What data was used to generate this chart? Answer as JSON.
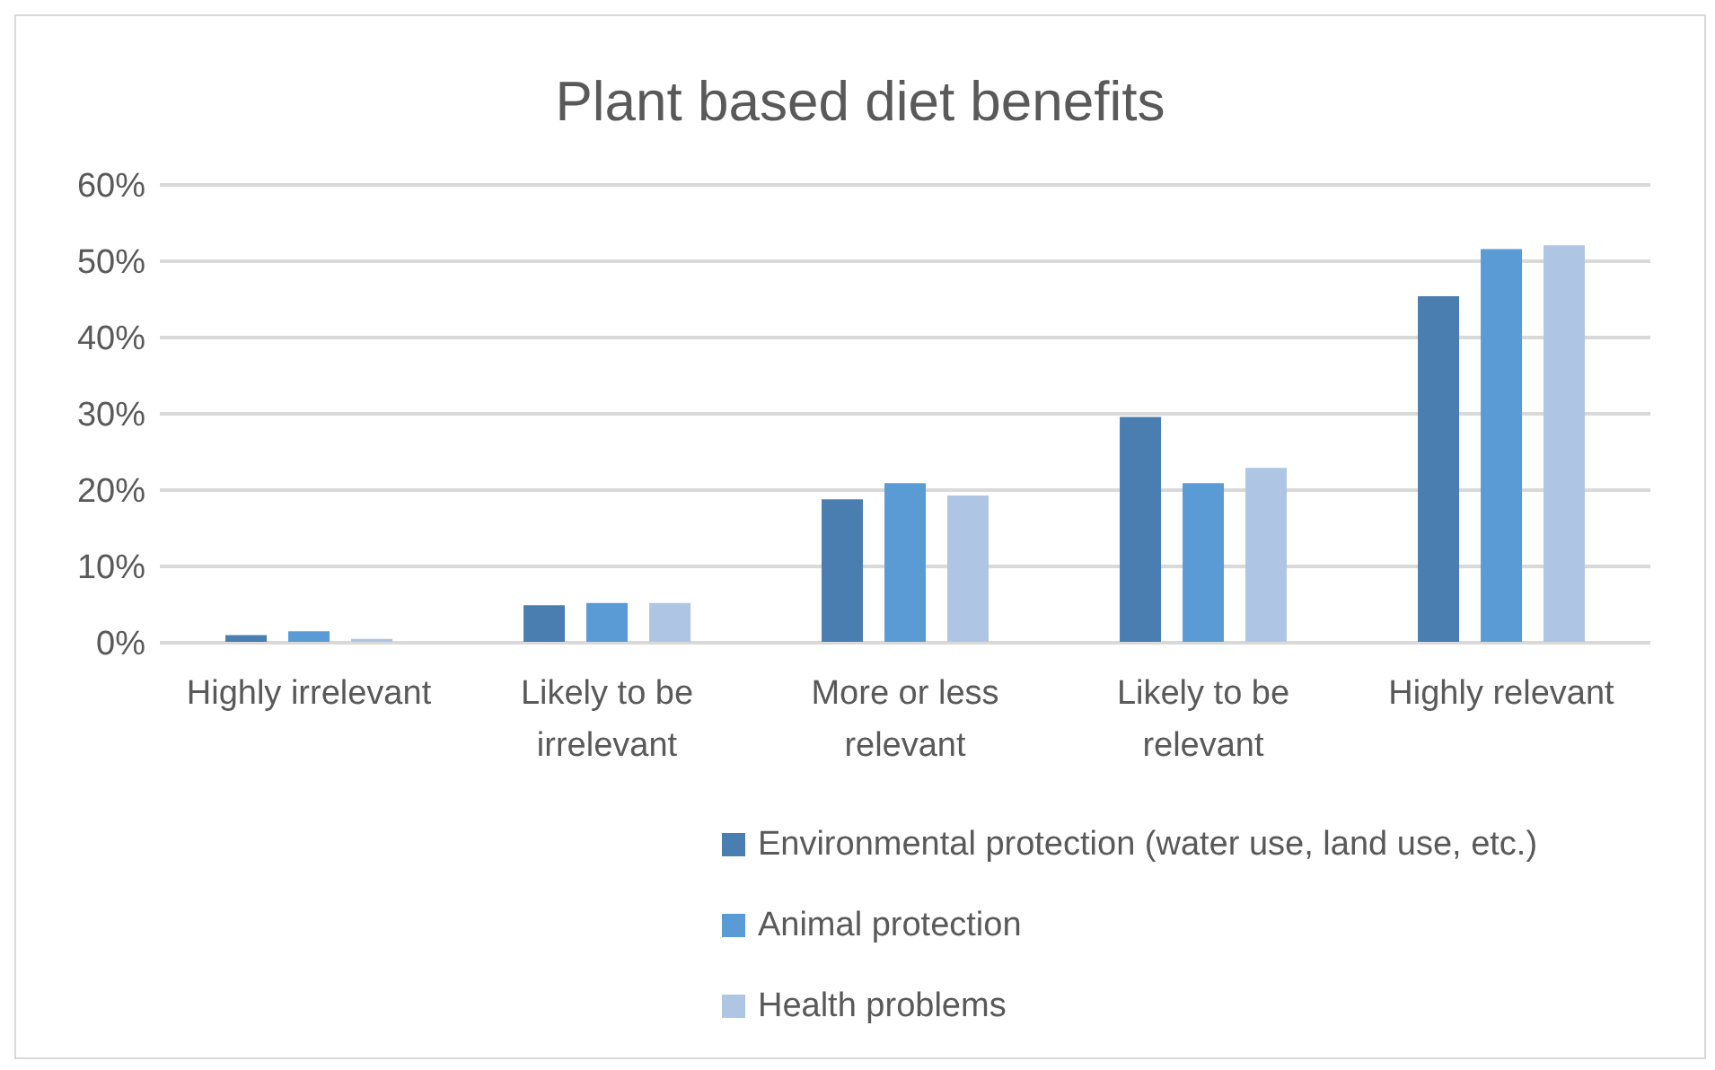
{
  "chart_data": {
    "type": "bar",
    "title": "Plant based diet benefits",
    "categories": [
      "Highly irrelevant",
      "Likely to be irrelevant",
      "More or less relevant",
      "Likely to be relevant",
      "Highly relevant"
    ],
    "series": [
      {
        "name": "Environmental protection (water use, land use, etc.)",
        "color": "#4a7eb0",
        "values": [
          1,
          4.9,
          18.8,
          29.6,
          45.4
        ]
      },
      {
        "name": "Animal protection",
        "color": "#5b9bd5",
        "values": [
          1.5,
          5.2,
          20.9,
          20.9,
          51.6
        ]
      },
      {
        "name": "Health problems",
        "color": "#aec6e4",
        "values": [
          0.5,
          5.2,
          19.3,
          22.9,
          52.1
        ]
      }
    ],
    "ylim": [
      0,
      60
    ],
    "yticks": [
      {
        "value": 0,
        "label": "0%"
      },
      {
        "value": 10,
        "label": "10%"
      },
      {
        "value": 20,
        "label": "20%"
      },
      {
        "value": 30,
        "label": "30%"
      },
      {
        "value": 40,
        "label": "40%"
      },
      {
        "value": 50,
        "label": "50%"
      },
      {
        "value": 60,
        "label": "60%"
      }
    ],
    "grid": "y",
    "legend": "bottom"
  }
}
